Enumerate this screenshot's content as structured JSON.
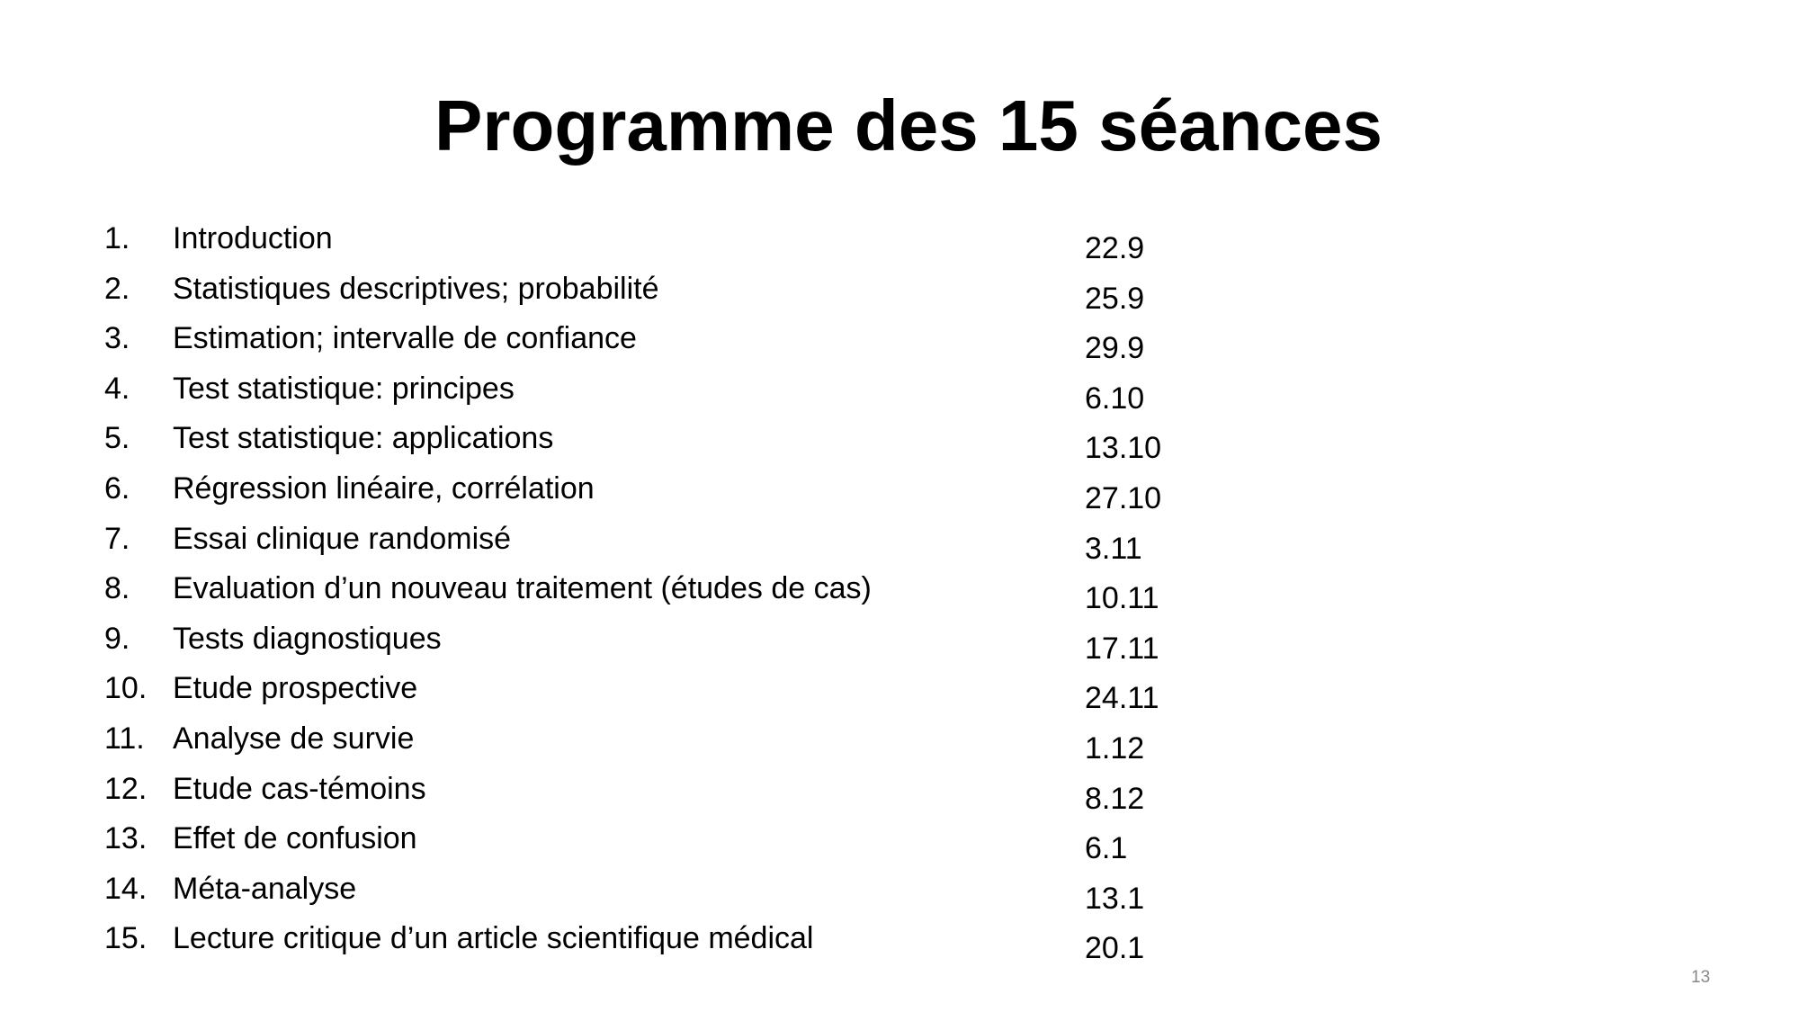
{
  "title": "Programme des 15 séances",
  "items": [
    {
      "number": "1.",
      "label": "Introduction",
      "date": "22.9"
    },
    {
      "number": "2.",
      "label": "Statistiques descriptives; probabilité",
      "date": "25.9"
    },
    {
      "number": "3.",
      "label": "Estimation; intervalle de confiance",
      "date": "29.9"
    },
    {
      "number": "4.",
      "label": "Test statistique: principes",
      "date": "6.10"
    },
    {
      "number": "5.",
      "label": "Test statistique: applications",
      "date": "13.10"
    },
    {
      "number": "6.",
      "label": "Régression linéaire, corrélation",
      "date": "27.10"
    },
    {
      "number": "7.",
      "label": "Essai clinique randomisé",
      "date": "3.11"
    },
    {
      "number": "8.",
      "label": "Evaluation d’un nouveau traitement (études de cas)",
      "date": "10.11"
    },
    {
      "number": "9.",
      "label": "Tests diagnostiques",
      "date": "17.11"
    },
    {
      "number": "10.",
      "label": "Etude prospective",
      "date": "24.11"
    },
    {
      "number": "11.",
      "label": "Analyse de survie",
      "date": "1.12"
    },
    {
      "number": "12.",
      "label": "Etude cas-témoins",
      "date": "8.12"
    },
    {
      "number": "13.",
      "label": "Effet de confusion",
      "date": "6.1"
    },
    {
      "number": "14.",
      "label": "Méta-analyse",
      "date": "13.1"
    },
    {
      "number": "15.",
      "label": "Lecture critique d’un article scientifique médical",
      "date": "20.1"
    }
  ],
  "page_number": "13"
}
